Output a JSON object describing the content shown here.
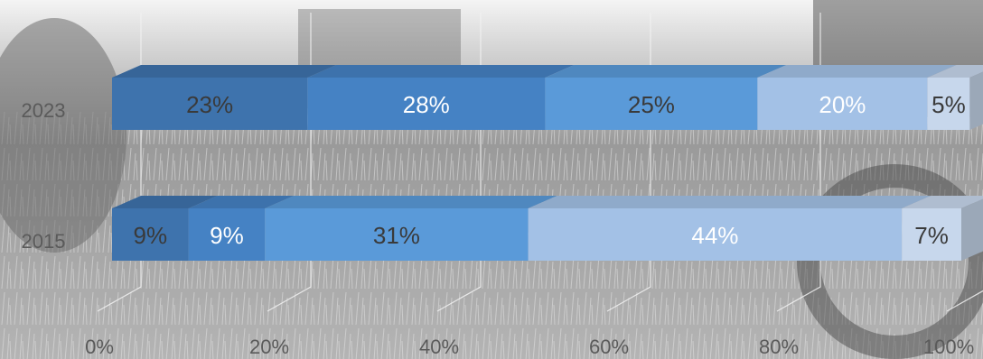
{
  "chart_data": {
    "type": "bar",
    "orientation": "horizontal",
    "stacked": "100%",
    "style": "3d",
    "background": "grayscale photo of a harvest field",
    "categories": [
      "2023",
      "2015"
    ],
    "series": [
      {
        "values": [
          23,
          9
        ],
        "labels": [
          "23%",
          "9%"
        ],
        "color": "#3e73ad",
        "text_color": "#3a3a3a"
      },
      {
        "values": [
          28,
          9
        ],
        "labels": [
          "28%",
          "9%"
        ],
        "color": "#4582c4",
        "text_color": "#ffffff"
      },
      {
        "values": [
          25,
          31
        ],
        "labels": [
          "25%",
          "31%"
        ],
        "color": "#5a9ad9",
        "text_color": "#3a3a3a"
      },
      {
        "values": [
          20,
          44
        ],
        "labels": [
          "20%",
          "44%"
        ],
        "color": "#a3c1e6",
        "text_color": "#ffffff"
      },
      {
        "values": [
          5,
          7
        ],
        "labels": [
          "5%",
          "7%"
        ],
        "color": "#c7d7ec",
        "text_color": "#3a3a3a"
      }
    ],
    "xlim": [
      0,
      100
    ],
    "x_ticks": [
      {
        "value": 0,
        "label": "0%"
      },
      {
        "value": 20,
        "label": "20%"
      },
      {
        "value": 40,
        "label": "40%"
      },
      {
        "value": 60,
        "label": "60%"
      },
      {
        "value": 80,
        "label": "80%"
      },
      {
        "value": 100,
        "label": "100%"
      }
    ],
    "gridlines": true,
    "legend": "none",
    "title": "",
    "xlabel": "",
    "ylabel": ""
  }
}
